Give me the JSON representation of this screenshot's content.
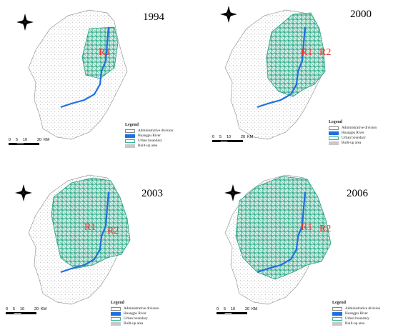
{
  "panels": [
    {
      "year": "1994",
      "zones": [
        "R1"
      ]
    },
    {
      "year": "2000",
      "zones": [
        "R1",
        "R2"
      ]
    },
    {
      "year": "2003",
      "zones": [
        "R1",
        "R2"
      ]
    },
    {
      "year": "2006",
      "zones": [
        "R1",
        "R2"
      ]
    }
  ],
  "legend": {
    "title": "Legend",
    "items": [
      {
        "label": "Administrative division",
        "color": "#ffffff",
        "border": "#888888"
      },
      {
        "label": "Huangpu River",
        "color": "#1f6fe0",
        "border": "#1f6fe0"
      },
      {
        "label": "Urban boundary",
        "color": "#ffffff",
        "border": "#3ab79a"
      },
      {
        "label": "Built-up area",
        "color": "#c8c8c8",
        "border": "#c8c8c8"
      }
    ]
  },
  "scale_bar": {
    "ticks": [
      "0",
      "5",
      "10",
      "20"
    ],
    "unit": "KM"
  },
  "compass": {
    "north": "N",
    "east": "E",
    "south": "S",
    "west": "W"
  },
  "colors": {
    "river": "#1f6fe0",
    "urban": "#1fa37f",
    "builtup": "#c8c8c8",
    "zone_label": "#e8322a"
  }
}
